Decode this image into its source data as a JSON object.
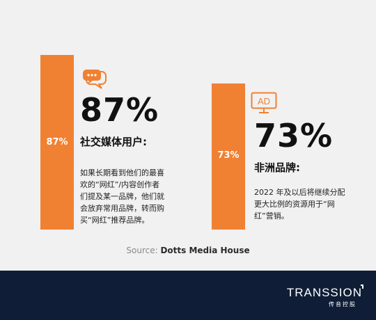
{
  "chart_data": {
    "type": "bar",
    "categories": [
      "社交媒体用户",
      "非洲品牌"
    ],
    "values": [
      87,
      73
    ],
    "ylim": [
      0,
      100
    ],
    "data_labels": [
      "87%",
      "73%"
    ],
    "colors": {
      "bar": "#f08132",
      "background": "#f1f1f2",
      "footer": "#0f1e36"
    }
  },
  "stats": [
    {
      "value_text": "87%",
      "heading": "社交媒体用户:",
      "lines": [
        "如果长期看到他们的最喜",
        "欢的“网红”/内容创作者",
        "们提及某一品牌，他们就",
        "会放弃常用品牌，转而购",
        "买“网红”推荐品牌。"
      ],
      "icon": "chat-bubbles-icon"
    },
    {
      "value_text": "73%",
      "heading": "非洲品牌:",
      "lines": [
        "2022 年及以后将继续分配",
        "更大比例的资源用于“网",
        "红”营销。"
      ],
      "icon": "ad-monitor-icon",
      "icon_text": "AD"
    }
  ],
  "source": {
    "prefix": "Source: ",
    "name": "Dotts Media House"
  },
  "footer": {
    "logo_text": "TRANSSION",
    "logo_sub": "传音控股"
  }
}
